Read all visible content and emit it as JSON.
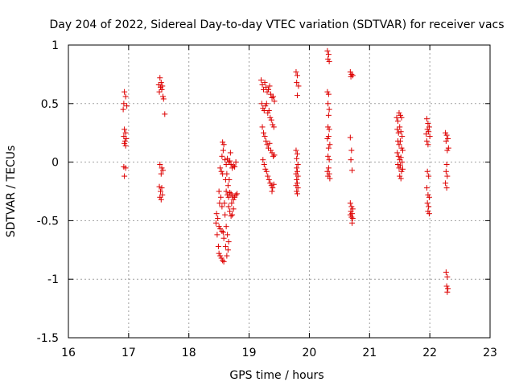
{
  "chart_data": {
    "type": "scatter",
    "title": "Day 204 of 2022, Sidereal Day-to-day VTEC variation (SDTVAR) for receiver vacs",
    "xlabel": "GPS time / hours",
    "ylabel": "SDTVAR / TECUs",
    "xlim": [
      16,
      23
    ],
    "ylim": [
      -1.5,
      1
    ],
    "xticks": [
      16,
      17,
      18,
      19,
      20,
      21,
      22,
      23
    ],
    "xtick_labels": [
      "16",
      "17",
      "18",
      "19",
      "20",
      "21",
      "22",
      "23"
    ],
    "yticks": [
      -1.5,
      -1,
      -0.5,
      0,
      0.5,
      1
    ],
    "ytick_labels": [
      "-1.5",
      "-1",
      "-0.5",
      "0",
      "0.5",
      "1"
    ],
    "grid": true,
    "marker": "+",
    "color": "#dd0000",
    "series": [
      {
        "name": "SDTVAR",
        "points": [
          [
            16.93,
            0.6
          ],
          [
            16.95,
            0.56
          ],
          [
            16.92,
            0.5
          ],
          [
            16.97,
            0.48
          ],
          [
            16.91,
            0.45
          ],
          [
            16.93,
            0.28
          ],
          [
            16.95,
            0.25
          ],
          [
            16.92,
            0.22
          ],
          [
            16.96,
            0.2
          ],
          [
            16.94,
            0.18
          ],
          [
            16.93,
            0.16
          ],
          [
            16.95,
            0.14
          ],
          [
            16.92,
            -0.04
          ],
          [
            16.95,
            -0.05
          ],
          [
            16.93,
            -0.12
          ],
          [
            17.52,
            0.72
          ],
          [
            17.54,
            0.68
          ],
          [
            17.5,
            0.66
          ],
          [
            17.56,
            0.65
          ],
          [
            17.53,
            0.64
          ],
          [
            17.55,
            0.62
          ],
          [
            17.51,
            0.6
          ],
          [
            17.57,
            0.56
          ],
          [
            17.58,
            0.54
          ],
          [
            17.6,
            0.41
          ],
          [
            17.52,
            -0.02
          ],
          [
            17.55,
            -0.05
          ],
          [
            17.57,
            -0.07
          ],
          [
            17.54,
            -0.1
          ],
          [
            17.51,
            -0.21
          ],
          [
            17.55,
            -0.22
          ],
          [
            17.53,
            -0.25
          ],
          [
            17.56,
            -0.28
          ],
          [
            17.52,
            -0.3
          ],
          [
            17.54,
            -0.32
          ],
          [
            18.45,
            -0.52
          ],
          [
            18.47,
            -0.62
          ],
          [
            18.49,
            -0.72
          ],
          [
            18.5,
            -0.78
          ],
          [
            18.52,
            -0.8
          ],
          [
            18.54,
            -0.82
          ],
          [
            18.56,
            -0.84
          ],
          [
            18.58,
            -0.85
          ],
          [
            18.46,
            -0.44
          ],
          [
            18.48,
            -0.48
          ],
          [
            18.5,
            -0.55
          ],
          [
            18.52,
            -0.57
          ],
          [
            18.55,
            -0.59
          ],
          [
            18.57,
            -0.6
          ],
          [
            18.53,
            -0.3
          ],
          [
            18.51,
            -0.35
          ],
          [
            18.55,
            -0.38
          ],
          [
            18.5,
            -0.25
          ],
          [
            18.52,
            -0.05
          ],
          [
            18.54,
            -0.08
          ],
          [
            18.56,
            -0.1
          ],
          [
            18.55,
            0.05
          ],
          [
            18.57,
            0.1
          ],
          [
            18.56,
            0.17
          ],
          [
            18.58,
            0.15
          ],
          [
            18.6,
            0.02
          ],
          [
            18.62,
            -0.02
          ],
          [
            18.64,
            0.03
          ],
          [
            18.66,
            0.0
          ],
          [
            18.68,
            0.01
          ],
          [
            18.7,
            -0.02
          ],
          [
            18.72,
            -0.05
          ],
          [
            18.74,
            -0.03
          ],
          [
            18.76,
            -0.04
          ],
          [
            18.78,
            0.0
          ],
          [
            18.62,
            -0.25
          ],
          [
            18.64,
            -0.28
          ],
          [
            18.66,
            -0.3
          ],
          [
            18.68,
            -0.26
          ],
          [
            18.7,
            -0.27
          ],
          [
            18.72,
            -0.29
          ],
          [
            18.74,
            -0.32
          ],
          [
            18.76,
            -0.3
          ],
          [
            18.78,
            -0.28
          ],
          [
            18.8,
            -0.27
          ],
          [
            18.66,
            -0.38
          ],
          [
            18.68,
            -0.42
          ],
          [
            18.7,
            -0.46
          ],
          [
            18.72,
            -0.45
          ],
          [
            18.74,
            -0.4
          ],
          [
            18.62,
            -0.55
          ],
          [
            18.64,
            -0.62
          ],
          [
            18.66,
            -0.68
          ],
          [
            18.65,
            -0.75
          ],
          [
            18.63,
            -0.8
          ],
          [
            18.61,
            -0.72
          ],
          [
            18.58,
            -0.65
          ],
          [
            18.6,
            -0.45
          ],
          [
            18.59,
            -0.35
          ],
          [
            18.61,
            -0.15
          ],
          [
            18.63,
            -0.1
          ],
          [
            18.65,
            -0.2
          ],
          [
            18.67,
            -0.15
          ],
          [
            18.69,
            0.08
          ],
          [
            18.71,
            -0.35
          ],
          [
            19.2,
            0.7
          ],
          [
            19.22,
            0.66
          ],
          [
            19.24,
            0.62
          ],
          [
            19.26,
            0.68
          ],
          [
            19.28,
            0.64
          ],
          [
            19.3,
            0.6
          ],
          [
            19.32,
            0.62
          ],
          [
            19.34,
            0.65
          ],
          [
            19.36,
            0.58
          ],
          [
            19.38,
            0.55
          ],
          [
            19.4,
            0.56
          ],
          [
            19.42,
            0.52
          ],
          [
            19.21,
            0.5
          ],
          [
            19.23,
            0.46
          ],
          [
            19.25,
            0.44
          ],
          [
            19.27,
            0.48
          ],
          [
            19.29,
            0.5
          ],
          [
            19.31,
            0.42
          ],
          [
            19.33,
            0.44
          ],
          [
            19.35,
            0.38
          ],
          [
            19.37,
            0.36
          ],
          [
            19.39,
            0.32
          ],
          [
            19.41,
            0.3
          ],
          [
            19.22,
            0.3
          ],
          [
            19.24,
            0.25
          ],
          [
            19.26,
            0.22
          ],
          [
            19.28,
            0.18
          ],
          [
            19.3,
            0.15
          ],
          [
            19.32,
            0.12
          ],
          [
            19.34,
            0.16
          ],
          [
            19.36,
            0.1
          ],
          [
            19.38,
            0.08
          ],
          [
            19.4,
            0.05
          ],
          [
            19.42,
            0.06
          ],
          [
            19.23,
            0.02
          ],
          [
            19.25,
            -0.02
          ],
          [
            19.27,
            -0.06
          ],
          [
            19.29,
            -0.08
          ],
          [
            19.31,
            -0.12
          ],
          [
            19.33,
            -0.15
          ],
          [
            19.35,
            -0.18
          ],
          [
            19.37,
            -0.2
          ],
          [
            19.39,
            -0.22
          ],
          [
            19.41,
            -0.19
          ],
          [
            19.38,
            -0.25
          ],
          [
            19.78,
            0.77
          ],
          [
            19.8,
            0.74
          ],
          [
            19.79,
            0.68
          ],
          [
            19.82,
            0.65
          ],
          [
            19.8,
            0.57
          ],
          [
            19.78,
            0.1
          ],
          [
            19.8,
            0.07
          ],
          [
            19.79,
            0.03
          ],
          [
            19.81,
            -0.02
          ],
          [
            19.79,
            -0.05
          ],
          [
            19.8,
            -0.08
          ],
          [
            19.78,
            -0.1
          ],
          [
            19.81,
            -0.12
          ],
          [
            19.79,
            -0.15
          ],
          [
            19.8,
            -0.18
          ],
          [
            19.78,
            -0.2
          ],
          [
            19.81,
            -0.22
          ],
          [
            19.79,
            -0.25
          ],
          [
            19.8,
            -0.27
          ],
          [
            20.3,
            0.95
          ],
          [
            20.32,
            0.92
          ],
          [
            20.31,
            0.88
          ],
          [
            20.33,
            0.86
          ],
          [
            20.3,
            0.6
          ],
          [
            20.32,
            0.58
          ],
          [
            20.31,
            0.5
          ],
          [
            20.33,
            0.45
          ],
          [
            20.32,
            0.4
          ],
          [
            20.31,
            0.3
          ],
          [
            20.33,
            0.28
          ],
          [
            20.32,
            0.22
          ],
          [
            20.3,
            0.2
          ],
          [
            20.34,
            0.15
          ],
          [
            20.32,
            0.12
          ],
          [
            20.31,
            0.05
          ],
          [
            20.33,
            0.02
          ],
          [
            20.32,
            -0.05
          ],
          [
            20.3,
            -0.08
          ],
          [
            20.33,
            -0.1
          ],
          [
            20.31,
            -0.12
          ],
          [
            20.34,
            -0.14
          ],
          [
            20.68,
            0.77
          ],
          [
            20.7,
            0.75
          ],
          [
            20.72,
            0.74
          ],
          [
            20.69,
            0.73
          ],
          [
            20.68,
            0.21
          ],
          [
            20.7,
            0.1
          ],
          [
            20.69,
            0.02
          ],
          [
            20.71,
            -0.07
          ],
          [
            20.68,
            -0.35
          ],
          [
            20.7,
            -0.38
          ],
          [
            20.72,
            -0.4
          ],
          [
            20.69,
            -0.42
          ],
          [
            20.71,
            -0.44
          ],
          [
            20.68,
            -0.45
          ],
          [
            20.7,
            -0.47
          ],
          [
            20.72,
            -0.48
          ],
          [
            20.71,
            -0.52
          ],
          [
            21.45,
            0.38
          ],
          [
            21.47,
            0.35
          ],
          [
            21.49,
            0.42
          ],
          [
            21.51,
            0.4
          ],
          [
            21.53,
            0.38
          ],
          [
            21.46,
            0.28
          ],
          [
            21.48,
            0.25
          ],
          [
            21.5,
            0.3
          ],
          [
            21.52,
            0.26
          ],
          [
            21.54,
            0.22
          ],
          [
            21.47,
            0.18
          ],
          [
            21.49,
            0.15
          ],
          [
            21.51,
            0.18
          ],
          [
            21.53,
            0.12
          ],
          [
            21.55,
            0.1
          ],
          [
            21.46,
            0.08
          ],
          [
            21.48,
            0.05
          ],
          [
            21.5,
            0.02
          ],
          [
            21.52,
            0.04
          ],
          [
            21.54,
            0.0
          ],
          [
            21.47,
            -0.02
          ],
          [
            21.49,
            -0.05
          ],
          [
            21.51,
            -0.03
          ],
          [
            21.53,
            -0.08
          ],
          [
            21.55,
            -0.06
          ],
          [
            21.5,
            -0.12
          ],
          [
            21.52,
            -0.14
          ],
          [
            21.95,
            0.37
          ],
          [
            21.97,
            0.33
          ],
          [
            21.99,
            0.3
          ],
          [
            21.96,
            0.28
          ],
          [
            21.98,
            0.26
          ],
          [
            21.94,
            0.24
          ],
          [
            22.0,
            0.22
          ],
          [
            21.95,
            0.18
          ],
          [
            21.97,
            0.15
          ],
          [
            21.96,
            -0.08
          ],
          [
            21.98,
            -0.12
          ],
          [
            21.95,
            -0.22
          ],
          [
            21.97,
            -0.28
          ],
          [
            21.99,
            -0.3
          ],
          [
            21.96,
            -0.35
          ],
          [
            21.98,
            -0.38
          ],
          [
            21.97,
            -0.42
          ],
          [
            21.99,
            -0.44
          ],
          [
            22.26,
            0.25
          ],
          [
            22.28,
            0.23
          ],
          [
            22.3,
            0.2
          ],
          [
            22.27,
            0.18
          ],
          [
            22.31,
            0.12
          ],
          [
            22.29,
            0.1
          ],
          [
            22.28,
            -0.02
          ],
          [
            22.27,
            -0.08
          ],
          [
            22.29,
            -0.12
          ],
          [
            22.26,
            -0.18
          ],
          [
            22.28,
            -0.22
          ],
          [
            22.27,
            -0.94
          ],
          [
            22.29,
            -0.98
          ],
          [
            22.28,
            -1.06
          ],
          [
            22.3,
            -1.08
          ],
          [
            22.29,
            -1.11
          ]
        ]
      }
    ]
  }
}
